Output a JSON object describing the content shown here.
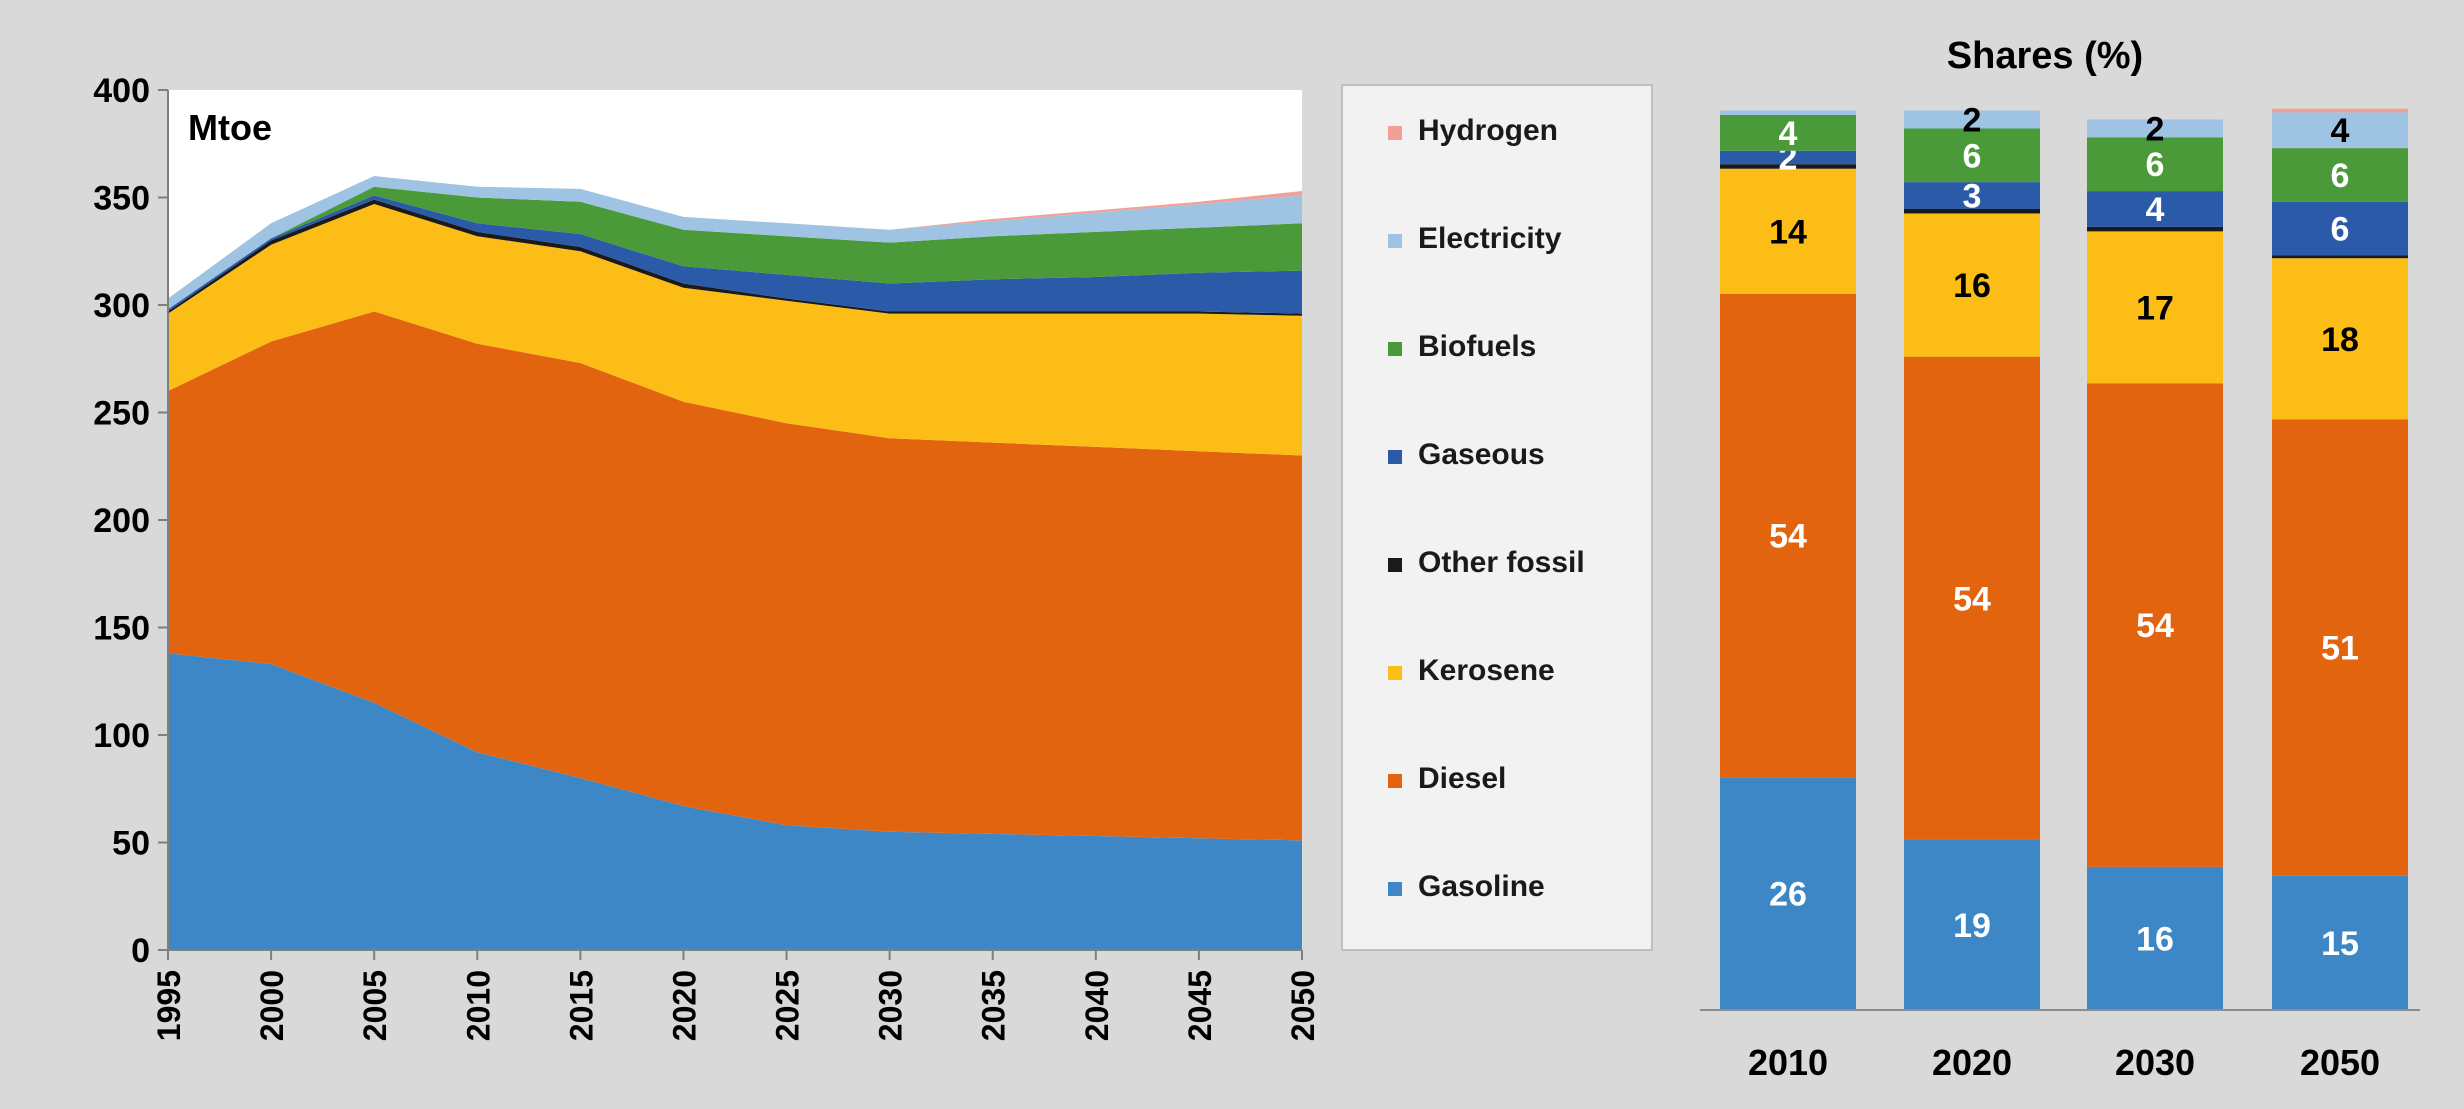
{
  "colors": {
    "background": "#d9d9d9",
    "plot_bg": "#ffffff",
    "Gasoline": "#3d87c6",
    "Diesel": "#e2640e",
    "Kerosene": "#fdbd17",
    "Other fossil": "#1a1a1a",
    "Gaseous": "#2a5aa8",
    "Biofuels": "#4a9a3a",
    "Electricity": "#9ec3e3",
    "Hydrogen": "#f2a095"
  },
  "chart_data": [
    {
      "type": "area",
      "stacked": true,
      "unit_label": "Mtoe",
      "xlabel": "",
      "ylabel": "",
      "x": [
        1995,
        2000,
        2005,
        2010,
        2015,
        2020,
        2025,
        2030,
        2035,
        2040,
        2045,
        2050
      ],
      "ylim": [
        0,
        400
      ],
      "yticks": [
        0,
        50,
        100,
        150,
        200,
        250,
        300,
        350,
        400
      ],
      "grid": false,
      "legend_position": "right",
      "series": [
        {
          "name": "Gasoline",
          "values": [
            138,
            133,
            115,
            92,
            80,
            67,
            58,
            55,
            54,
            53,
            52,
            51
          ]
        },
        {
          "name": "Diesel",
          "values": [
            122,
            150,
            182,
            190,
            193,
            188,
            187,
            183,
            182,
            181,
            180,
            179
          ]
        },
        {
          "name": "Kerosene",
          "values": [
            36,
            45,
            50,
            50,
            52,
            53,
            57,
            58,
            60,
            62,
            64,
            65
          ]
        },
        {
          "name": "Other fossil",
          "values": [
            1,
            2,
            2,
            2,
            2,
            2,
            1,
            1,
            1,
            1,
            1,
            1
          ]
        },
        {
          "name": "Gaseous",
          "values": [
            1,
            1,
            2,
            4,
            6,
            8,
            11,
            13,
            15,
            16,
            18,
            20
          ]
        },
        {
          "name": "Biofuels",
          "values": [
            0,
            0,
            4,
            12,
            15,
            17,
            18,
            19,
            20,
            21,
            21,
            22
          ]
        },
        {
          "name": "Electricity",
          "values": [
            5,
            7,
            5,
            5,
            6,
            6,
            6,
            6,
            7,
            9,
            11,
            13
          ]
        },
        {
          "name": "Hydrogen",
          "values": [
            0,
            0,
            0,
            0,
            0,
            0,
            0,
            0,
            1,
            1,
            1,
            2
          ]
        }
      ],
      "legend": [
        "Hydrogen",
        "Electricity",
        "Biofuels",
        "Gaseous",
        "Other fossil",
        "Kerosene",
        "Diesel",
        "Gasoline"
      ]
    },
    {
      "type": "bar",
      "stacked": true,
      "title": "Shares (%)",
      "categories": [
        "2010",
        "2020",
        "2030",
        "2050"
      ],
      "ylim": [
        0,
        100
      ],
      "series": [
        {
          "name": "Gasoline",
          "values": [
            26,
            19,
            16,
            15
          ],
          "labels": [
            "26",
            "19",
            "16",
            "15"
          ]
        },
        {
          "name": "Diesel",
          "values": [
            54,
            54,
            54,
            51
          ],
          "labels": [
            "54",
            "54",
            "54",
            "51"
          ]
        },
        {
          "name": "Kerosene",
          "values": [
            14,
            16,
            17,
            18
          ],
          "labels": [
            "14",
            "16",
            "17",
            "18"
          ]
        },
        {
          "name": "Other fossil",
          "values": [
            0.5,
            0.5,
            0.5,
            0.3
          ],
          "labels": [
            "",
            "",
            "",
            ""
          ]
        },
        {
          "name": "Gaseous",
          "values": [
            1.5,
            3,
            4,
            6
          ],
          "labels": [
            "2",
            "3",
            "4",
            "6"
          ]
        },
        {
          "name": "Biofuels",
          "values": [
            4,
            6,
            6,
            6
          ],
          "labels": [
            "4",
            "6",
            "6",
            "6"
          ]
        },
        {
          "name": "Electricity",
          "values": [
            0.5,
            2,
            2,
            4
          ],
          "labels": [
            "",
            "2",
            "2",
            "4"
          ]
        },
        {
          "name": "Hydrogen",
          "values": [
            0,
            0,
            0,
            0.4
          ],
          "labels": [
            "",
            "",
            "",
            ""
          ]
        }
      ]
    }
  ]
}
